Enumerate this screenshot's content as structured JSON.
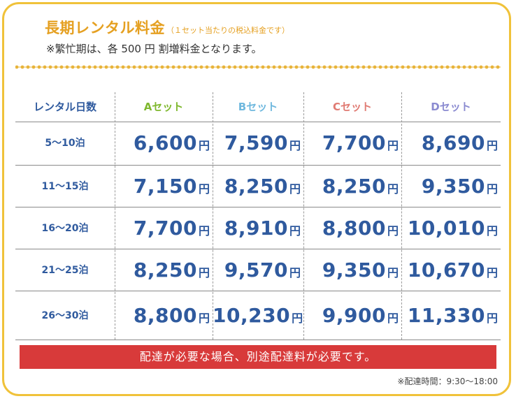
{
  "title": {
    "main": "長期レンタル料金",
    "sub": "（１セット当たりの税込料金です）"
  },
  "note": "※繁忙期は、各 500 円 割増料金となります。",
  "table": {
    "header_label": "レンタル日数",
    "sets": [
      {
        "label": "Aセット",
        "color": "#7fb82e"
      },
      {
        "label": "Bセット",
        "color": "#6fb8de"
      },
      {
        "label": "Cセット",
        "color": "#e07a72"
      },
      {
        "label": "Dセット",
        "color": "#8a8ad0"
      }
    ],
    "currency": "円",
    "rows": [
      {
        "nights": "5～10泊",
        "prices": [
          "6,600",
          "7,590",
          "7,700",
          "8,690"
        ]
      },
      {
        "nights": "11～15泊",
        "prices": [
          "7,150",
          "8,250",
          "8,250",
          "9,350"
        ]
      },
      {
        "nights": "16～20泊",
        "prices": [
          "7,700",
          "8,910",
          "8,800",
          "10,010"
        ]
      },
      {
        "nights": "21～25泊",
        "prices": [
          "8,250",
          "9,570",
          "9,350",
          "10,670"
        ]
      },
      {
        "nights": "26～30泊",
        "prices": [
          "8,800",
          "10,230",
          "9,900",
          "11,330"
        ]
      }
    ]
  },
  "banner": "配達が必要な場合、別途配達料が必要です。",
  "footnote": "※配達時間：9:30～18:00",
  "colors": {
    "frame": "#f0c23a",
    "title": "#e5a021",
    "price": "#2f5a9e",
    "banner": "#d83a3a"
  }
}
